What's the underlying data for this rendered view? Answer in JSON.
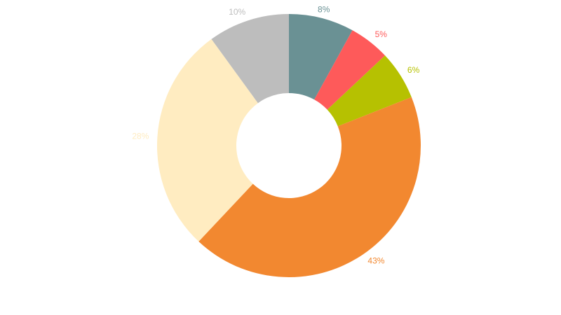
{
  "chart_data": {
    "type": "pie",
    "donut": true,
    "title": "",
    "start": "top",
    "direction": "clockwise",
    "slices": [
      {
        "label": "8%",
        "value": 8,
        "color": "#6a9194"
      },
      {
        "label": "5%",
        "value": 5,
        "color": "#fe5a5a"
      },
      {
        "label": "6%",
        "value": 6,
        "color": "#b6c101"
      },
      {
        "label": "43%",
        "value": 43,
        "color": "#f28830"
      },
      {
        "label": "28%",
        "value": 28,
        "color": "#ffecc1"
      },
      {
        "label": "10%",
        "value": 10,
        "color": "#bdbdbd"
      }
    ]
  }
}
